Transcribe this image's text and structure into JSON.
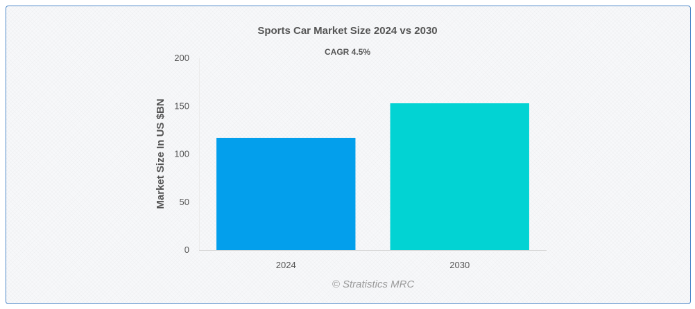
{
  "chart_data": {
    "type": "bar",
    "title": "Sports Car Market Size 2024 vs 2030",
    "subtitle": "CAGR 4.5%",
    "categories": [
      "2024",
      "2030"
    ],
    "values": [
      117,
      153
    ],
    "bar_colors": [
      "#039fec",
      "#02d3d3"
    ],
    "xlabel": "",
    "ylabel": "Market Size In US $BN",
    "ylim": [
      0,
      200
    ],
    "yticks": [
      0,
      50,
      100,
      150,
      200
    ],
    "grid": false,
    "legend": "none"
  },
  "credit": "© Stratistics MRC"
}
